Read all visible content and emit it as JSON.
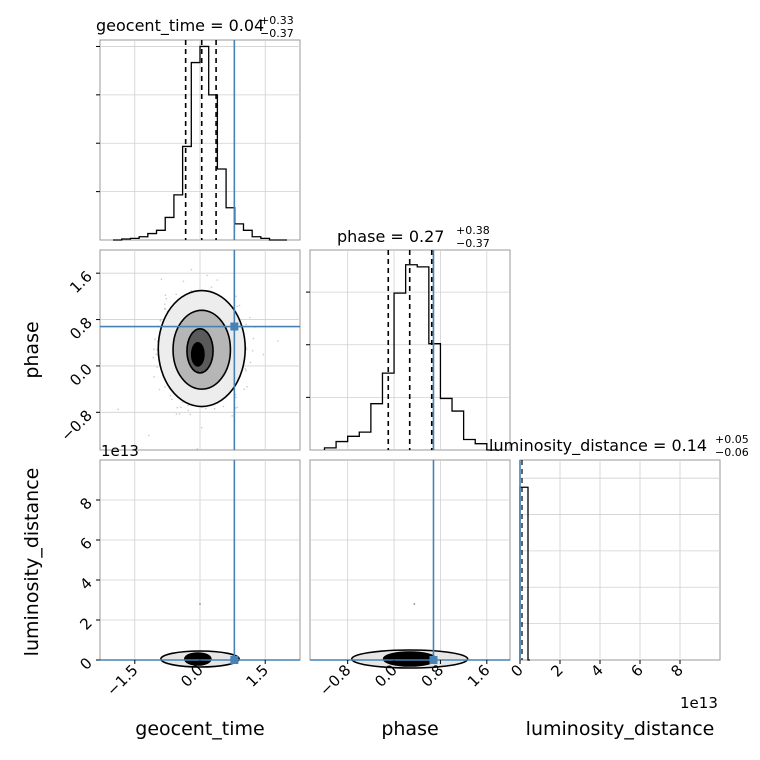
{
  "chart_data": {
    "type": "corner",
    "parameters": [
      "geocent_time",
      "phase",
      "luminosity_distance"
    ],
    "colors": {
      "histogram": "#000000",
      "quantile": "#000000",
      "truth": "#4682b4",
      "grid": "#d0d0d0",
      "frame": "#999999",
      "scatter": "#8a8a8a"
    },
    "titles": {
      "geocent_time": {
        "label": "geocent_time",
        "median": "0.04",
        "plus": "+0.33",
        "minus": "−0.37"
      },
      "phase": {
        "label": "phase",
        "median": "0.27",
        "plus": "+0.38",
        "minus": "−0.37"
      },
      "luminosity_distance": {
        "label": "luminosity_distance",
        "median": "0.14",
        "plus": "+0.05",
        "minus": "−0.06"
      }
    },
    "truths": {
      "geocent_time": 0.79,
      "phase": 0.68,
      "luminosity_distance": 0.0
    },
    "ranges": {
      "geocent_time": [
        -2.3,
        2.3
      ],
      "phase": [
        -1.45,
        2.0
      ],
      "luminosity_distance": [
        0,
        10
      ],
      "hist_geocent_time": [
        0,
        0.62
      ],
      "hist_phase": [
        0,
        0.19
      ],
      "hist_luminosity_distance": [
        0,
        110
      ]
    },
    "ticks": {
      "geocent_time": [
        -1.5,
        0.0,
        1.5
      ],
      "geocent_time_labels": [
        "−1.5",
        "0.0",
        "1.5"
      ],
      "phase": [
        -0.8,
        0.0,
        0.8,
        1.6
      ],
      "phase_labels": [
        "−0.8",
        "0.0",
        "0.8",
        "1.6"
      ],
      "luminosity_distance": [
        0,
        2,
        4,
        6,
        8
      ],
      "luminosity_distance_labels": [
        "0",
        "2",
        "4",
        "6",
        "8"
      ],
      "hist_geocent_time": [
        0.15,
        0.3,
        0.45,
        0.6
      ],
      "hist_phase": [
        0.05,
        0.1,
        0.15
      ]
    },
    "offset_label": "1e13",
    "quantiles": {
      "geocent_time": [
        -0.33,
        0.04,
        0.37
      ],
      "phase": [
        -0.1,
        0.27,
        0.65
      ]
    },
    "hist_geocent_time": {
      "edges": [
        -2.0,
        -1.8,
        -1.6,
        -1.4,
        -1.2,
        -1.0,
        -0.8,
        -0.6,
        -0.4,
        -0.2,
        0.0,
        0.2,
        0.4,
        0.6,
        0.8,
        1.0,
        1.2,
        1.4,
        1.6,
        1.8,
        2.0
      ],
      "counts": [
        0.0,
        0.003,
        0.005,
        0.01,
        0.02,
        0.03,
        0.07,
        0.14,
        0.29,
        0.55,
        0.6,
        0.45,
        0.22,
        0.1,
        0.05,
        0.03,
        0.01,
        0.005,
        0.0,
        0.0
      ]
    },
    "hist_phase": {
      "edges": [
        -1.2,
        -1.0,
        -0.8,
        -0.6,
        -0.4,
        -0.2,
        0.0,
        0.2,
        0.4,
        0.6,
        0.8,
        1.0,
        1.2,
        1.4,
        1.6,
        1.8
      ],
      "counts": [
        0.002,
        0.008,
        0.013,
        0.017,
        0.044,
        0.073,
        0.149,
        0.176,
        0.174,
        0.101,
        0.049,
        0.037,
        0.01,
        0.006,
        0.0
      ]
    },
    "hist_luminosity_distance": {
      "edges": [
        0.0,
        0.1,
        0.2,
        0.3,
        0.4,
        0.5
      ],
      "counts": [
        95,
        95,
        95,
        95,
        0
      ]
    },
    "contours_time_phase": [
      {
        "level": 1,
        "cx": 0.04,
        "cy": 0.3,
        "rx": 1.0,
        "ry": 1.0,
        "fill": "#ededed",
        "stroke": "#000000"
      },
      {
        "level": 2,
        "cx": 0.04,
        "cy": 0.28,
        "rx": 0.66,
        "ry": 0.68,
        "fill": "#b6b6b6",
        "stroke": "#000000"
      },
      {
        "level": 3,
        "cx": 0.0,
        "cy": 0.26,
        "rx": 0.3,
        "ry": 0.38,
        "fill": "#5a5a5a",
        "stroke": "#000000"
      },
      {
        "level": 4,
        "cx": -0.05,
        "cy": 0.2,
        "rx": 0.14,
        "ry": 0.2,
        "fill": "#000000",
        "stroke": "#000000"
      }
    ],
    "contours_time_distance": [
      {
        "level": 1,
        "cx": 0.0,
        "cy": 0.05,
        "rx": 0.9,
        "ry": 0.4,
        "fill": "#e6e6e6",
        "stroke": "#000000"
      },
      {
        "level": 2,
        "cx": -0.05,
        "cy": 0.05,
        "rx": 0.3,
        "ry": 0.3,
        "fill": "#000000",
        "stroke": "#000000"
      }
    ],
    "contours_phase_distance": [
      {
        "level": 1,
        "cx": 0.27,
        "cy": 0.05,
        "rx": 1.0,
        "ry": 0.45,
        "fill": "#e6e6e6",
        "stroke": "#000000"
      },
      {
        "level": 2,
        "cx": 0.27,
        "cy": 0.05,
        "rx": 0.45,
        "ry": 0.35,
        "fill": "#000000",
        "stroke": "#000000"
      }
    ],
    "outlier_time_distance": {
      "x": 0.0,
      "y": 2.8
    },
    "outlier_phase_distance": {
      "x": 0.35,
      "y": 2.8
    }
  }
}
